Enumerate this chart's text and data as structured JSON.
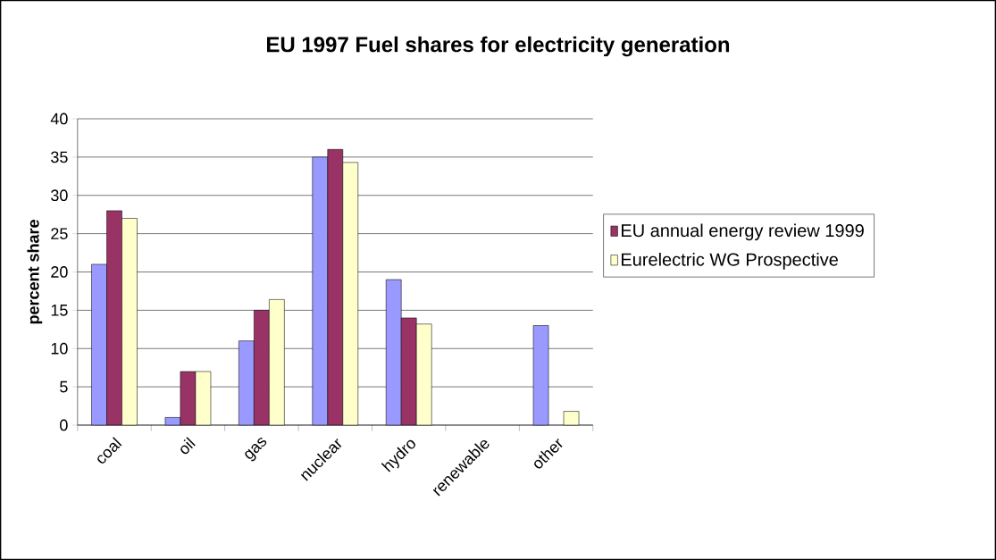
{
  "chart_data": {
    "type": "bar",
    "title": "EU 1997 Fuel shares for electricity generation",
    "ylabel": "percent share",
    "categories": [
      "coal",
      "oil",
      "gas",
      "nuclear",
      "hydro",
      "renewable",
      "other"
    ],
    "series": [
      {
        "color": "#9999ff",
        "values": [
          21,
          1,
          11,
          35,
          19,
          null,
          13
        ]
      },
      {
        "name": "EU annual energy review 1999",
        "color": "#993366",
        "values": [
          28,
          7,
          15,
          36,
          14,
          null,
          null
        ]
      },
      {
        "name": "Eurelectric WG Prospective",
        "color": "#ffffcc",
        "values": [
          27,
          7,
          16.4,
          34.3,
          13.2,
          null,
          1.8
        ]
      }
    ],
    "ylim": [
      0,
      40
    ],
    "yticks": [
      0,
      5,
      10,
      15,
      20,
      25,
      30,
      35,
      40
    ],
    "grid": "y",
    "legend": "right"
  }
}
